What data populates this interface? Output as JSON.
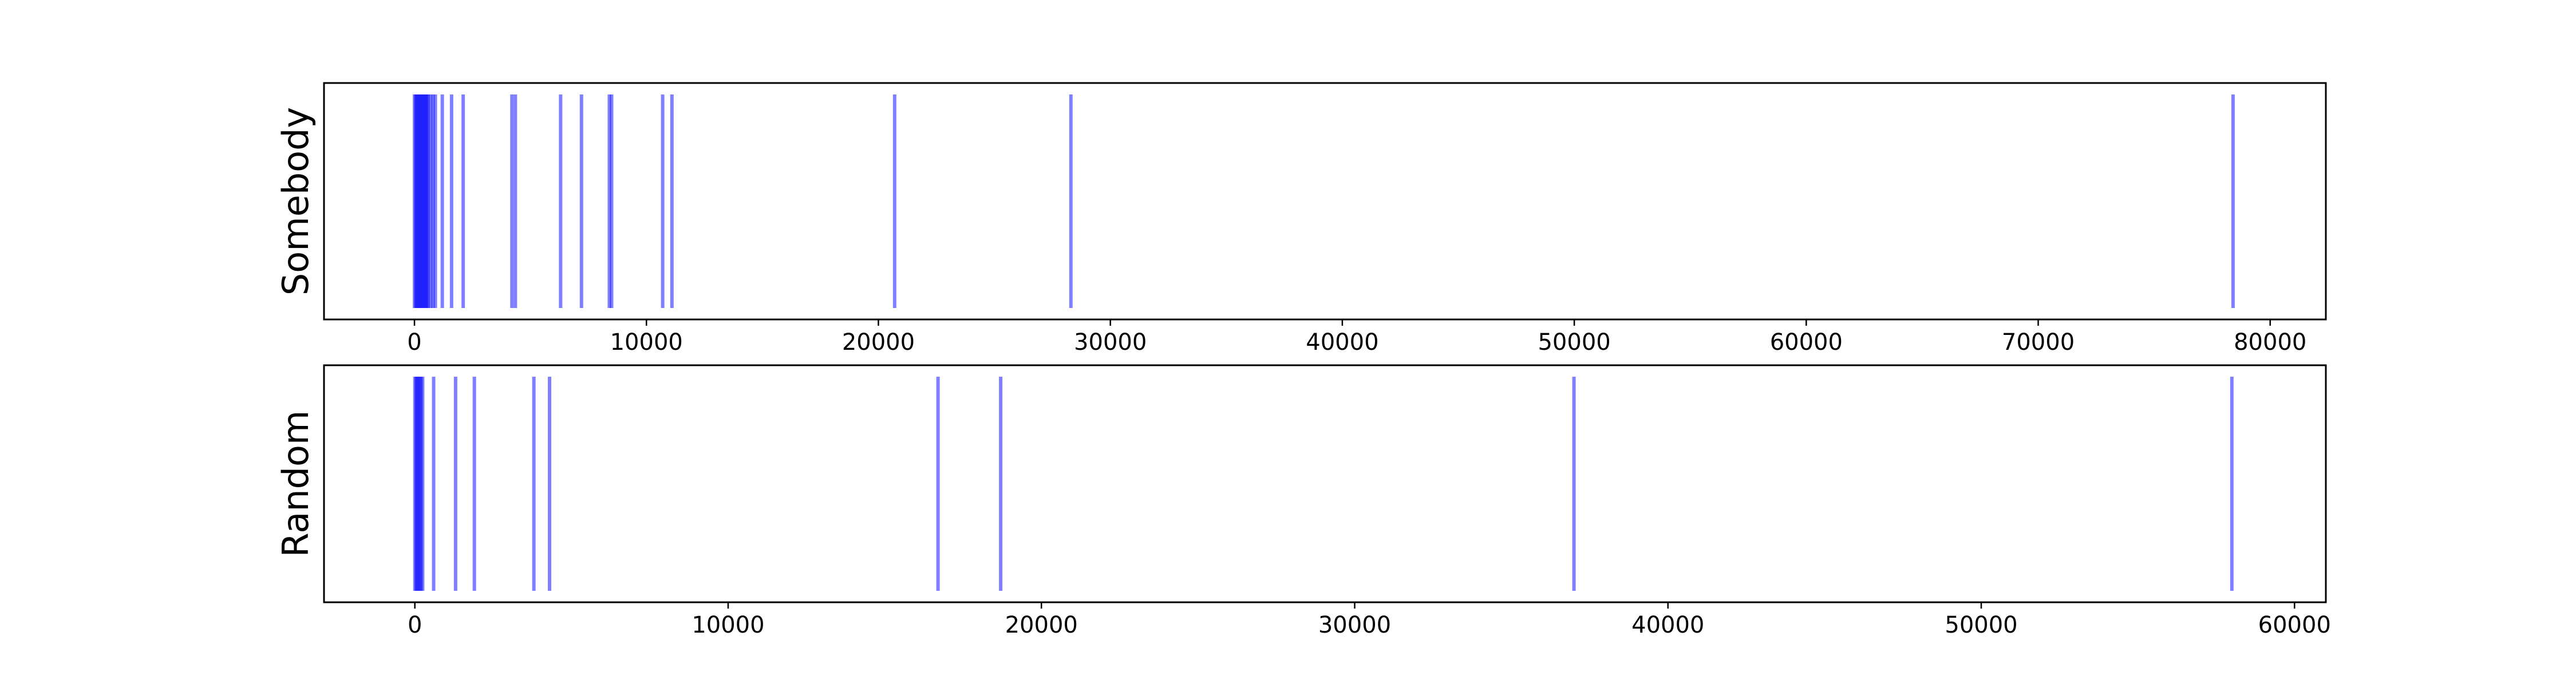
{
  "chart_data": [
    {
      "type": "event-plot",
      "ylabel": "Somebody",
      "xlim": [
        -3900,
        82400
      ],
      "xticks": [
        0,
        10000,
        20000,
        30000,
        40000,
        50000,
        60000,
        70000,
        80000
      ],
      "xtick_labels": [
        "0",
        "10000",
        "20000",
        "30000",
        "40000",
        "50000",
        "60000",
        "70000",
        "80000"
      ],
      "color": "#0000ff",
      "events": [
        0,
        50,
        100,
        150,
        200,
        250,
        300,
        350,
        400,
        450,
        500,
        550,
        600,
        700,
        800,
        900,
        1200,
        1600,
        2100,
        4200,
        4350,
        6300,
        7200,
        8400,
        8500,
        10700,
        11100,
        20700,
        28300,
        78400
      ]
    },
    {
      "type": "event-plot",
      "ylabel": "Random",
      "xlim": [
        -2900,
        61000
      ],
      "xticks": [
        0,
        10000,
        20000,
        30000,
        40000,
        50000,
        60000
      ],
      "xtick_labels": [
        "0",
        "10000",
        "20000",
        "30000",
        "40000",
        "50000",
        "60000"
      ],
      "color": "#0000ff",
      "events": [
        0,
        40,
        80,
        120,
        160,
        200,
        250,
        600,
        1300,
        1900,
        3800,
        4300,
        16700,
        18700,
        37000,
        58000
      ]
    }
  ]
}
